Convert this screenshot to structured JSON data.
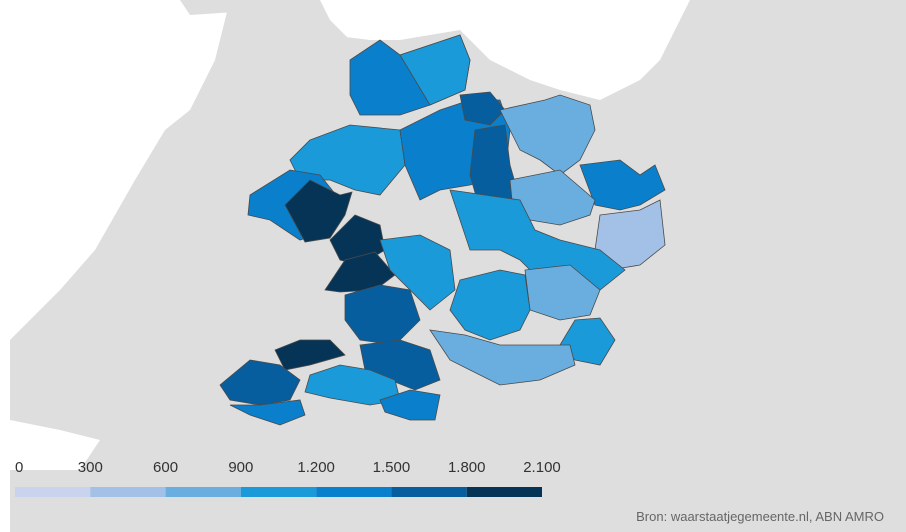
{
  "legend": {
    "ticks": [
      0,
      300,
      600,
      900,
      {
        "value": 1200,
        "label": "1.200"
      },
      {
        "value": 1500,
        "label": "1.500"
      },
      {
        "value": 1800,
        "label": "1.800"
      },
      {
        "value": 2100,
        "label": "2.100"
      }
    ],
    "colors": [
      "#c9d3ee",
      "#a3c0e6",
      "#6aaee0",
      "#1a9ad9",
      "#0a7fcc",
      "#075e9e",
      "#053456"
    ]
  },
  "source": "Bron: waarstaatjegemeente.nl, ABN AMRO"
}
